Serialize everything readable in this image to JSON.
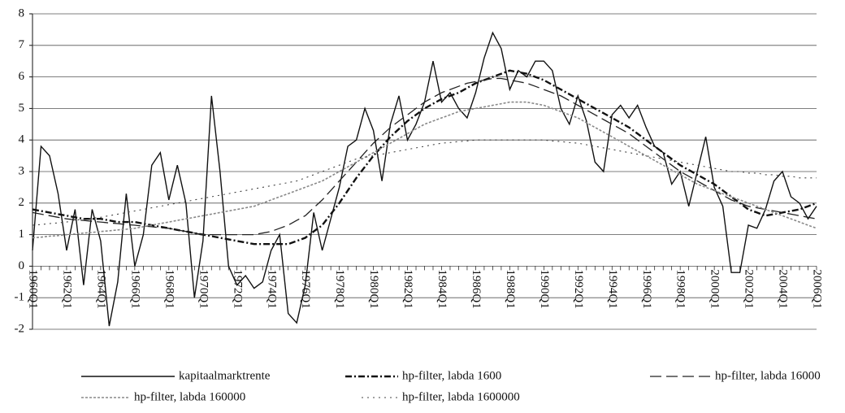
{
  "chart_data": {
    "type": "line",
    "categories": [
      "1960Q1",
      null,
      null,
      null,
      "1962Q1",
      null,
      null,
      null,
      "1964Q1",
      null,
      null,
      null,
      "1966Q1",
      null,
      null,
      null,
      "1968Q1",
      null,
      null,
      null,
      "1970Q1",
      null,
      null,
      null,
      "1972Q1",
      null,
      null,
      null,
      "1974Q1",
      null,
      null,
      null,
      "1976Q1",
      null,
      null,
      null,
      "1978Q1",
      null,
      null,
      null,
      "1980Q1",
      null,
      null,
      null,
      "1982Q1",
      null,
      null,
      null,
      "1984Q1",
      null,
      null,
      null,
      "1986Q1",
      null,
      null,
      null,
      "1988Q1",
      null,
      null,
      null,
      "1990Q1",
      null,
      null,
      null,
      "1992Q1",
      null,
      null,
      null,
      "1994Q1",
      null,
      null,
      null,
      "1996Q1",
      null,
      null,
      null,
      "1998Q1",
      null,
      null,
      null,
      "2000Q1",
      null,
      null,
      null,
      "2002Q1",
      null,
      null,
      null,
      "2004Q1",
      null,
      null,
      null,
      "2006Q1"
    ],
    "ylim": [
      -2,
      8
    ],
    "yticks": [
      -2,
      -1,
      0,
      1,
      2,
      3,
      4,
      5,
      6,
      7,
      8
    ],
    "grid": true,
    "series": [
      {
        "name": "kapitaalmarktrente",
        "color": "#111111",
        "dash": "none",
        "width": 1.4,
        "values": [
          0.5,
          3.8,
          3.5,
          2.3,
          0.5,
          1.8,
          -0.6,
          1.8,
          0.8,
          -1.9,
          -0.5,
          2.3,
          0.0,
          1.0,
          3.2,
          3.6,
          2.1,
          3.2,
          2.0,
          -1.0,
          0.8,
          5.4,
          3.0,
          0.0,
          -0.6,
          -0.3,
          -0.7,
          -0.5,
          0.5,
          1.0,
          -1.5,
          -1.8,
          -0.6,
          1.7,
          0.5,
          1.5,
          2.5,
          3.8,
          4.0,
          5.0,
          4.3,
          2.7,
          4.5,
          5.4,
          4.0,
          4.5,
          5.2,
          6.5,
          5.2,
          5.5,
          5.0,
          4.7,
          5.5,
          6.6,
          7.4,
          6.9,
          5.6,
          6.2,
          6.0,
          6.5,
          6.5,
          6.2,
          5.0,
          4.5,
          5.4,
          4.6,
          3.3,
          3.0,
          4.8,
          5.1,
          4.7,
          5.1,
          4.4,
          3.8,
          3.6,
          2.6,
          3.0,
          1.9,
          3.0,
          4.1,
          2.5,
          1.9,
          -0.2,
          -0.2,
          1.3,
          1.2,
          1.8,
          2.7,
          3.0,
          2.2,
          2.0,
          1.5,
          1.9
        ]
      },
      {
        "name": "hp-filter, labda 1600",
        "color": "#111111",
        "dash": "8 3 2 3",
        "width": 2.4,
        "values": [
          1.8,
          1.75,
          1.7,
          1.65,
          1.6,
          1.55,
          1.5,
          1.5,
          1.5,
          1.45,
          1.4,
          1.4,
          1.4,
          1.35,
          1.3,
          1.25,
          1.2,
          1.15,
          1.1,
          1.05,
          1.0,
          0.95,
          0.9,
          0.85,
          0.8,
          0.75,
          0.7,
          0.7,
          0.7,
          0.7,
          0.7,
          0.8,
          0.9,
          1.1,
          1.3,
          1.65,
          2.0,
          2.4,
          2.8,
          3.15,
          3.5,
          3.8,
          4.1,
          4.35,
          4.6,
          4.8,
          5.0,
          5.15,
          5.3,
          5.4,
          5.5,
          5.65,
          5.8,
          5.9,
          6.0,
          6.1,
          6.2,
          6.15,
          6.1,
          6.0,
          5.9,
          5.75,
          5.6,
          5.45,
          5.3,
          5.15,
          5.0,
          4.85,
          4.7,
          4.55,
          4.4,
          4.2,
          4.0,
          3.8,
          3.6,
          3.4,
          3.2,
          3.05,
          2.9,
          2.75,
          2.6,
          2.4,
          2.2,
          2.0,
          1.8,
          1.7,
          1.6,
          1.65,
          1.7,
          1.75,
          1.8,
          1.9,
          2.0
        ]
      },
      {
        "name": "hp-filter, labda 16000",
        "color": "#222222",
        "dash": "14 6",
        "width": 1.3,
        "values": [
          1.7,
          1.65,
          1.6,
          1.55,
          1.5,
          1.47,
          1.45,
          1.42,
          1.4,
          1.37,
          1.35,
          1.32,
          1.3,
          1.27,
          1.25,
          1.22,
          1.2,
          1.15,
          1.1,
          1.05,
          1.0,
          1.0,
          1.0,
          1.0,
          1.0,
          1.0,
          1.0,
          1.05,
          1.1,
          1.2,
          1.3,
          1.45,
          1.6,
          1.85,
          2.1,
          2.4,
          2.7,
          3.0,
          3.3,
          3.6,
          3.9,
          4.15,
          4.4,
          4.6,
          4.8,
          5.0,
          5.2,
          5.35,
          5.5,
          5.6,
          5.7,
          5.8,
          5.85,
          5.9,
          5.95,
          5.95,
          5.9,
          5.85,
          5.8,
          5.7,
          5.6,
          5.5,
          5.4,
          5.25,
          5.1,
          4.95,
          4.8,
          4.65,
          4.5,
          4.35,
          4.2,
          4.0,
          3.8,
          3.6,
          3.4,
          3.2,
          3.0,
          2.85,
          2.7,
          2.55,
          2.4,
          2.25,
          2.1,
          2.0,
          1.9,
          1.85,
          1.8,
          1.75,
          1.7,
          1.65,
          1.6,
          1.55,
          1.5
        ]
      },
      {
        "name": "hp-filter, labda 160000",
        "color": "#888888",
        "dash": "3 2",
        "width": 1.6,
        "values": [
          0.9,
          0.92,
          0.95,
          0.97,
          1.0,
          1.02,
          1.05,
          1.07,
          1.1,
          1.12,
          1.15,
          1.17,
          1.2,
          1.25,
          1.3,
          1.35,
          1.4,
          1.45,
          1.5,
          1.55,
          1.6,
          1.65,
          1.7,
          1.75,
          1.8,
          1.85,
          1.9,
          2.0,
          2.1,
          2.2,
          2.3,
          2.4,
          2.5,
          2.6,
          2.7,
          2.85,
          3.0,
          3.15,
          3.3,
          3.45,
          3.6,
          3.75,
          3.9,
          4.05,
          4.2,
          4.35,
          4.5,
          4.6,
          4.7,
          4.8,
          4.9,
          4.95,
          5.0,
          5.05,
          5.1,
          5.15,
          5.2,
          5.2,
          5.2,
          5.15,
          5.1,
          5.0,
          4.9,
          4.8,
          4.7,
          4.55,
          4.4,
          4.25,
          4.1,
          3.95,
          3.8,
          3.65,
          3.5,
          3.35,
          3.2,
          3.05,
          2.9,
          2.75,
          2.6,
          2.5,
          2.4,
          2.3,
          2.2,
          2.1,
          2.0,
          1.9,
          1.8,
          1.7,
          1.6,
          1.5,
          1.4,
          1.3,
          1.2
        ]
      },
      {
        "name": "hp-filter, labda 1600000",
        "color": "#444444",
        "dash": "2 5",
        "width": 1.1,
        "values": [
          1.3,
          1.32,
          1.35,
          1.37,
          1.4,
          1.45,
          1.5,
          1.52,
          1.55,
          1.6,
          1.65,
          1.7,
          1.75,
          1.8,
          1.85,
          1.9,
          1.95,
          2.0,
          2.05,
          2.1,
          2.15,
          2.2,
          2.25,
          2.3,
          2.35,
          2.4,
          2.45,
          2.5,
          2.55,
          2.6,
          2.65,
          2.7,
          2.8,
          2.9,
          3.0,
          3.1,
          3.2,
          3.3,
          3.4,
          3.45,
          3.5,
          3.55,
          3.6,
          3.65,
          3.7,
          3.75,
          3.8,
          3.85,
          3.9,
          3.92,
          3.95,
          3.97,
          4.0,
          4.0,
          4.0,
          4.0,
          4.0,
          4.0,
          4.0,
          4.0,
          4.0,
          3.97,
          3.95,
          3.92,
          3.9,
          3.85,
          3.8,
          3.75,
          3.7,
          3.65,
          3.6,
          3.55,
          3.5,
          3.45,
          3.4,
          3.35,
          3.3,
          3.25,
          3.2,
          3.15,
          3.1,
          3.05,
          3.0,
          3.0,
          2.95,
          2.95,
          2.9,
          2.9,
          2.85,
          2.85,
          2.8,
          2.8,
          2.8
        ]
      }
    ]
  }
}
